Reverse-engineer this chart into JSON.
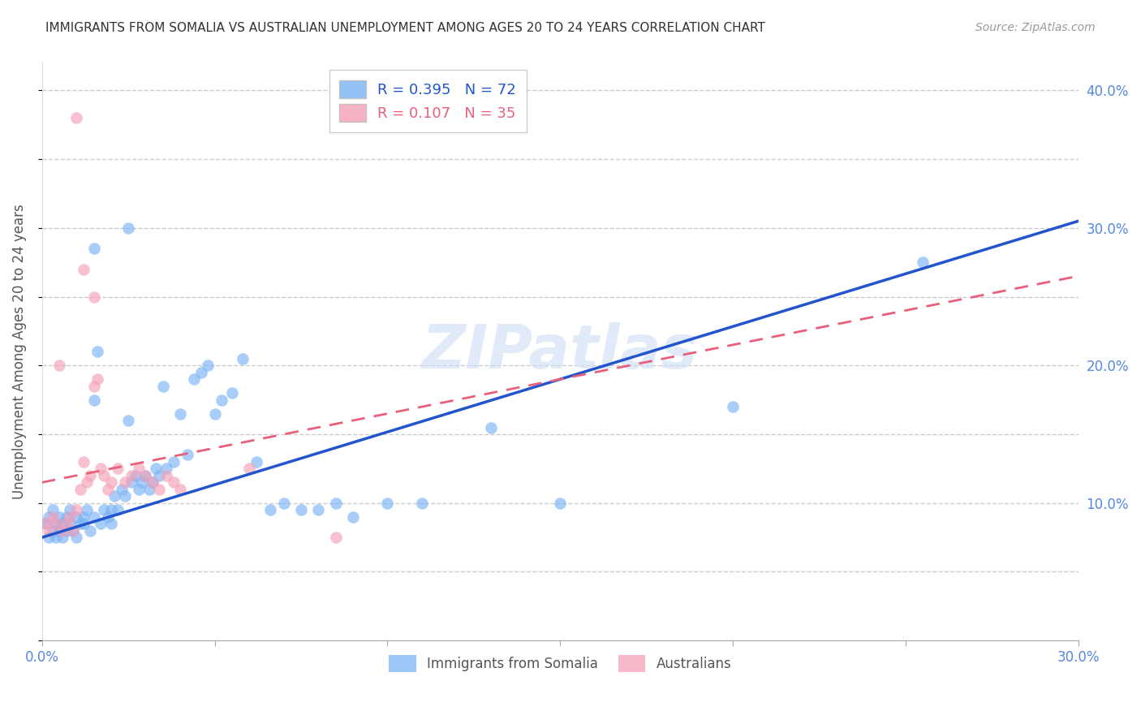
{
  "title": "IMMIGRANTS FROM SOMALIA VS AUSTRALIAN UNEMPLOYMENT AMONG AGES 20 TO 24 YEARS CORRELATION CHART",
  "source": "Source: ZipAtlas.com",
  "ylabel": "Unemployment Among Ages 20 to 24 years",
  "xlim": [
    0.0,
    0.3
  ],
  "ylim": [
    0.0,
    0.42
  ],
  "xtick_vals": [
    0.0,
    0.05,
    0.1,
    0.15,
    0.2,
    0.25,
    0.3
  ],
  "xtick_labels": [
    "0.0%",
    "",
    "",
    "",
    "",
    "",
    "30.0%"
  ],
  "ytick_vals": [
    0.1,
    0.2,
    0.3,
    0.4
  ],
  "ytick_labels": [
    "10.0%",
    "20.0%",
    "30.0%",
    "40.0%"
  ],
  "grid_color": "#cccccc",
  "background_color": "#ffffff",
  "watermark": "ZIPatlas",
  "legend_r1": "R = 0.395",
  "legend_n1": "N = 72",
  "legend_r2": "R = 0.107",
  "legend_n2": "N = 35",
  "blue_color": "#7ab3f5",
  "pink_color": "#f5a0b8",
  "trendline_blue": "#2255cc",
  "trendline_pink": "#e8607a",
  "title_color": "#333333",
  "axis_label_color": "#5588dd",
  "legend_label1": "Immigrants from Somalia",
  "legend_label2": "Australians",
  "blue_scatter_x": [
    0.001,
    0.002,
    0.002,
    0.003,
    0.003,
    0.004,
    0.004,
    0.005,
    0.005,
    0.006,
    0.006,
    0.007,
    0.007,
    0.008,
    0.008,
    0.009,
    0.01,
    0.01,
    0.011,
    0.012,
    0.012,
    0.013,
    0.014,
    0.015,
    0.015,
    0.016,
    0.017,
    0.018,
    0.019,
    0.02,
    0.02,
    0.021,
    0.022,
    0.023,
    0.024,
    0.025,
    0.026,
    0.027,
    0.028,
    0.029,
    0.03,
    0.031,
    0.032,
    0.033,
    0.034,
    0.035,
    0.036,
    0.038,
    0.04,
    0.042,
    0.044,
    0.046,
    0.048,
    0.05,
    0.052,
    0.055,
    0.058,
    0.062,
    0.066,
    0.07,
    0.075,
    0.08,
    0.085,
    0.09,
    0.1,
    0.11,
    0.13,
    0.15,
    0.2,
    0.255,
    0.015,
    0.025
  ],
  "blue_scatter_y": [
    0.085,
    0.075,
    0.09,
    0.08,
    0.095,
    0.075,
    0.085,
    0.09,
    0.08,
    0.085,
    0.075,
    0.09,
    0.08,
    0.095,
    0.085,
    0.08,
    0.09,
    0.075,
    0.085,
    0.09,
    0.085,
    0.095,
    0.08,
    0.175,
    0.09,
    0.21,
    0.085,
    0.095,
    0.09,
    0.095,
    0.085,
    0.105,
    0.095,
    0.11,
    0.105,
    0.16,
    0.115,
    0.12,
    0.11,
    0.115,
    0.12,
    0.11,
    0.115,
    0.125,
    0.12,
    0.185,
    0.125,
    0.13,
    0.165,
    0.135,
    0.19,
    0.195,
    0.2,
    0.165,
    0.175,
    0.18,
    0.205,
    0.13,
    0.095,
    0.1,
    0.095,
    0.095,
    0.1,
    0.09,
    0.1,
    0.1,
    0.155,
    0.1,
    0.17,
    0.275,
    0.285,
    0.3
  ],
  "pink_scatter_x": [
    0.001,
    0.002,
    0.003,
    0.004,
    0.005,
    0.006,
    0.007,
    0.008,
    0.009,
    0.01,
    0.011,
    0.012,
    0.013,
    0.014,
    0.015,
    0.016,
    0.017,
    0.018,
    0.019,
    0.02,
    0.022,
    0.024,
    0.026,
    0.028,
    0.03,
    0.032,
    0.034,
    0.036,
    0.038,
    0.04,
    0.01,
    0.012,
    0.015,
    0.06,
    0.085
  ],
  "pink_scatter_y": [
    0.085,
    0.08,
    0.09,
    0.085,
    0.2,
    0.08,
    0.085,
    0.09,
    0.08,
    0.095,
    0.11,
    0.13,
    0.115,
    0.12,
    0.185,
    0.19,
    0.125,
    0.12,
    0.11,
    0.115,
    0.125,
    0.115,
    0.12,
    0.125,
    0.12,
    0.115,
    0.11,
    0.12,
    0.115,
    0.11,
    0.38,
    0.27,
    0.25,
    0.125,
    0.075
  ],
  "blue_trend_x": [
    0.0,
    0.3
  ],
  "blue_trend_y": [
    0.075,
    0.305
  ],
  "pink_trend_x": [
    0.0,
    0.3
  ],
  "pink_trend_y": [
    0.115,
    0.265
  ]
}
